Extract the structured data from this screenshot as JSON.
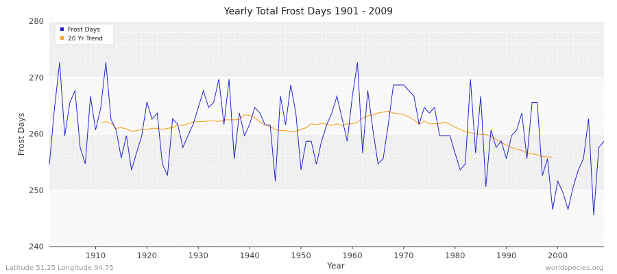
{
  "chart_data": {
    "type": "line",
    "title": "Yearly Total Frost Days 1901 - 2009",
    "xlabel": "Year",
    "ylabel": "Frost Days",
    "xlim": [
      1901,
      2009
    ],
    "ylim": [
      240,
      280
    ],
    "x_ticks": [
      1910,
      1920,
      1930,
      1940,
      1950,
      1960,
      1970,
      1980,
      1990,
      2000
    ],
    "y_ticks": [
      240,
      250,
      260,
      270,
      280
    ],
    "grid": true,
    "legend_position": "top-left",
    "series": [
      {
        "name": "Frost Days",
        "color": "#2222cc",
        "x": [
          1901,
          1902,
          1903,
          1904,
          1905,
          1906,
          1907,
          1908,
          1909,
          1910,
          1911,
          1912,
          1913,
          1914,
          1915,
          1916,
          1917,
          1918,
          1919,
          1920,
          1921,
          1922,
          1923,
          1924,
          1925,
          1926,
          1927,
          1928,
          1929,
          1930,
          1931,
          1932,
          1933,
          1934,
          1935,
          1936,
          1937,
          1938,
          1939,
          1940,
          1941,
          1942,
          1943,
          1944,
          1945,
          1946,
          1947,
          1948,
          1949,
          1950,
          1951,
          1952,
          1953,
          1954,
          1955,
          1956,
          1957,
          1958,
          1959,
          1960,
          1961,
          1962,
          1963,
          1964,
          1965,
          1966,
          1967,
          1968,
          1969,
          1970,
          1971,
          1972,
          1973,
          1974,
          1975,
          1976,
          1977,
          1978,
          1979,
          1980,
          1981,
          1982,
          1983,
          1984,
          1985,
          1986,
          1987,
          1988,
          1989,
          1990,
          1991,
          1992,
          1993,
          1994,
          1995,
          1996,
          1997,
          1998,
          1999,
          2000,
          2001,
          2002,
          2003,
          2004,
          2005,
          2006,
          2007,
          2008,
          2009
        ],
        "values": [
          254.6,
          264.6,
          272.7,
          259.7,
          265.6,
          267.7,
          257.6,
          254.7,
          266.7,
          260.7,
          264.6,
          272.7,
          262.6,
          260.7,
          255.7,
          259.7,
          253.6,
          256.7,
          259.7,
          265.7,
          262.6,
          263.7,
          254.7,
          252.6,
          262.7,
          261.7,
          257.6,
          259.7,
          261.7,
          264.7,
          267.7,
          264.7,
          265.6,
          269.7,
          261.7,
          269.7,
          255.6,
          263.7,
          259.7,
          261.7,
          264.7,
          263.7,
          261.6,
          261.6,
          251.6,
          266.7,
          261.6,
          268.7,
          263.7,
          253.6,
          258.7,
          258.7,
          254.6,
          258.7,
          261.6,
          263.7,
          266.7,
          262.7,
          258.7,
          266.7,
          272.7,
          256.6,
          267.7,
          260.7,
          254.7,
          255.6,
          261.7,
          268.7,
          268.7,
          268.7,
          267.7,
          266.7,
          261.7,
          264.7,
          263.7,
          264.7,
          259.7,
          259.7,
          259.7,
          256.6,
          253.6,
          254.7,
          269.7,
          256.6,
          266.7,
          250.6,
          260.7,
          257.6,
          258.7,
          255.6,
          259.7,
          260.7,
          263.7,
          255.6,
          265.6,
          265.6,
          252.6,
          255.6,
          246.6,
          251.6,
          249.6,
          246.6,
          250.6,
          253.6,
          255.6,
          262.7,
          245.6,
          257.6,
          258.7
        ]
      },
      {
        "name": "20 Yr Trend",
        "color": "#f5a020",
        "x": [
          1911,
          1912,
          1913,
          1914,
          1915,
          1916,
          1917,
          1918,
          1919,
          1920,
          1921,
          1922,
          1923,
          1924,
          1925,
          1926,
          1927,
          1928,
          1929,
          1930,
          1931,
          1932,
          1933,
          1934,
          1935,
          1936,
          1937,
          1938,
          1939,
          1940,
          1941,
          1942,
          1943,
          1944,
          1945,
          1946,
          1947,
          1948,
          1949,
          1950,
          1951,
          1952,
          1953,
          1954,
          1955,
          1956,
          1957,
          1958,
          1959,
          1960,
          1961,
          1962,
          1963,
          1964,
          1965,
          1966,
          1967,
          1968,
          1969,
          1970,
          1971,
          1972,
          1973,
          1974,
          1975,
          1976,
          1977,
          1978,
          1979,
          1980,
          1981,
          1982,
          1983,
          1984,
          1985,
          1986,
          1987,
          1988,
          1989,
          1990,
          1991,
          1992,
          1993,
          1994,
          1995,
          1996,
          1997,
          1998,
          1999
        ],
        "values": [
          261.9,
          262.2,
          261.9,
          261.0,
          261.1,
          260.9,
          260.5,
          260.6,
          260.8,
          260.8,
          261.0,
          261.0,
          260.8,
          261.0,
          261.1,
          261.6,
          261.5,
          261.8,
          262.1,
          262.2,
          262.2,
          262.3,
          262.3,
          262.2,
          262.5,
          262.5,
          262.5,
          262.6,
          263.4,
          263.3,
          262.9,
          262.1,
          261.6,
          261.3,
          260.8,
          260.6,
          260.6,
          260.4,
          260.5,
          260.8,
          261.1,
          261.8,
          261.6,
          261.9,
          261.7,
          261.5,
          261.8,
          261.5,
          261.8,
          261.8,
          262.1,
          262.8,
          263.2,
          263.4,
          263.7,
          263.9,
          264.0,
          263.7,
          263.6,
          263.4,
          263.0,
          262.5,
          261.7,
          262.3,
          261.8,
          261.8,
          261.8,
          262.1,
          261.7,
          261.2,
          260.8,
          260.4,
          260.2,
          260.0,
          259.9,
          259.9,
          259.5,
          259.0,
          258.5,
          258.0,
          257.6,
          257.3,
          257.1,
          256.6,
          256.5,
          256.3,
          256.0,
          255.9,
          255.9
        ]
      }
    ]
  },
  "footer": {
    "left": "Latitude 51.25 Longitude 94.75",
    "right": "worldspecies.org"
  }
}
